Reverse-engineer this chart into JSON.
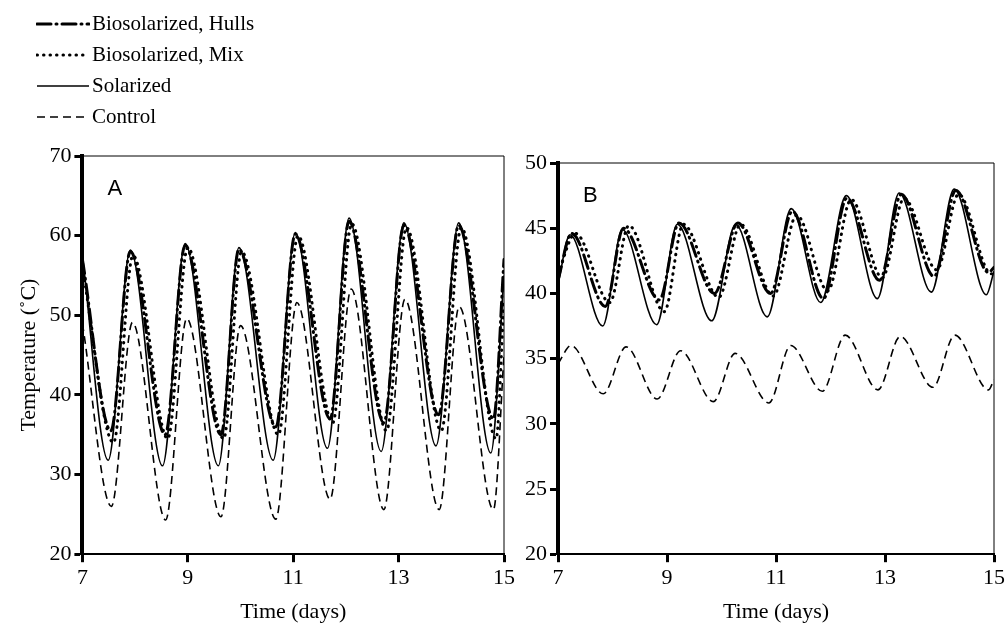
{
  "chart_data": [
    {
      "type": "line",
      "ylabel": "Temperature (˚C)",
      "xlabel": "Time (days)",
      "annotations": [
        "A"
      ],
      "xlim": [
        7,
        15
      ],
      "xticks": [
        7,
        9,
        11,
        13,
        15
      ],
      "ylim": [
        20,
        70
      ],
      "yticks": [
        20,
        30,
        40,
        50,
        60,
        70
      ],
      "grid": false,
      "legend": "top left",
      "marker": "none",
      "series": [
        {
          "name": "Biosolarized, Hulls",
          "color": "#000000",
          "line_style": "dashdot",
          "x": [
            7,
            7.54,
            7.91,
            8.57,
            8.95,
            9.63,
            9.97,
            10.67,
            11.04,
            11.7,
            12.06,
            12.72,
            13.1,
            13.76,
            14.14,
            14.8,
            15
          ],
          "values": [
            57,
            35.5,
            58,
            35,
            58.8,
            35,
            58.3,
            36,
            60.2,
            37,
            61.8,
            36.5,
            61.3,
            37.5,
            61.3,
            37,
            57
          ]
        },
        {
          "name": "Biosolarized, Mix",
          "color": "#000000",
          "line_style": "dotted",
          "x": [
            7,
            7.59,
            7.96,
            8.62,
            9.0,
            9.68,
            10.02,
            10.72,
            11.09,
            11.75,
            12.11,
            12.77,
            13.15,
            13.81,
            14.19,
            14.85,
            15
          ],
          "values": [
            56,
            34,
            57.5,
            34.5,
            58.5,
            34.5,
            58,
            35,
            60,
            36.5,
            61.5,
            35.5,
            61,
            35.5,
            61,
            34.5,
            52
          ]
        },
        {
          "name": "Solarized",
          "color": "#000000",
          "line_style": "solid",
          "x": [
            7,
            7.49,
            7.91,
            8.52,
            8.95,
            9.58,
            9.97,
            10.62,
            11.04,
            11.65,
            12.06,
            12.67,
            13.1,
            13.71,
            14.14,
            14.75,
            15
          ],
          "values": [
            57.5,
            31.8,
            58.2,
            31.1,
            59.0,
            31.1,
            58.5,
            31.8,
            60.4,
            33.3,
            62.2,
            32.9,
            61.6,
            33.6,
            61.6,
            32.7,
            55
          ]
        },
        {
          "name": "Control",
          "color": "#000000",
          "line_style": "dashed",
          "x": [
            7,
            7.55,
            7.95,
            8.58,
            8.98,
            9.63,
            10.0,
            10.67,
            11.07,
            11.7,
            12.1,
            12.72,
            13.12,
            13.77,
            14.15,
            14.8,
            15
          ],
          "values": [
            49,
            26,
            49.1,
            24.3,
            49.6,
            24.7,
            48.7,
            24.4,
            51.6,
            26.9,
            53.3,
            25.6,
            52,
            25.6,
            51.1,
            25.6,
            45
          ]
        }
      ]
    },
    {
      "type": "line",
      "xlabel": "Time (days)",
      "annotations": [
        "B"
      ],
      "xlim": [
        7,
        15
      ],
      "xticks": [
        7,
        9,
        11,
        13,
        15
      ],
      "ylim": [
        20,
        50
      ],
      "yticks": [
        20,
        25,
        30,
        35,
        40,
        45,
        50
      ],
      "grid": false,
      "marker": "none",
      "series": [
        {
          "color": "#000000",
          "line_style": "dashdot",
          "x": [
            7,
            7.25,
            7.87,
            8.2,
            8.86,
            9.22,
            9.87,
            10.3,
            10.9,
            11.3,
            11.87,
            12.3,
            12.9,
            13.3,
            13.9,
            14.3,
            14.9,
            15
          ],
          "values": [
            41,
            44.6,
            39,
            45,
            39.5,
            45.4,
            40,
            45.4,
            40,
            46.3,
            39.6,
            47.3,
            41,
            47.6,
            41.3,
            47.9,
            41.6,
            42
          ]
        },
        {
          "color": "#000000",
          "line_style": "dotted",
          "x": [
            7,
            7.32,
            7.95,
            8.3,
            8.95,
            9.3,
            9.95,
            10.35,
            10.95,
            11.38,
            11.95,
            12.38,
            12.95,
            13.35,
            13.95,
            14.35,
            14.95,
            15
          ],
          "values": [
            41.5,
            44.6,
            39.3,
            45.2,
            38.6,
            45.3,
            39.7,
            45.3,
            39.8,
            46,
            40.2,
            47.2,
            41.2,
            47.3,
            41.8,
            47.6,
            41.5,
            41.8
          ]
        },
        {
          "color": "#000000",
          "line_style": "solid",
          "x": [
            7,
            7.22,
            7.82,
            8.18,
            8.81,
            9.19,
            9.82,
            10.26,
            10.84,
            11.28,
            11.82,
            12.29,
            12.86,
            13.26,
            13.85,
            14.27,
            14.86,
            15
          ],
          "values": [
            40.7,
            44.5,
            37.5,
            44.9,
            37.6,
            45.3,
            37.9,
            45.3,
            38.2,
            46.5,
            39.3,
            47.5,
            39.6,
            47.7,
            40.1,
            48.0,
            39.9,
            41.7
          ]
        },
        {
          "color": "#000000",
          "line_style": "dashed",
          "x": [
            7,
            7.24,
            7.83,
            8.25,
            8.82,
            9.25,
            9.85,
            10.25,
            10.87,
            11.27,
            11.85,
            12.27,
            12.87,
            13.28,
            13.88,
            14.28,
            14.9,
            15
          ],
          "values": [
            34.6,
            36.0,
            32.3,
            35.9,
            31.9,
            35.6,
            31.7,
            35.4,
            31.6,
            36.0,
            32.5,
            36.8,
            32.6,
            36.7,
            32.8,
            36.8,
            32.6,
            33.4
          ]
        }
      ]
    }
  ]
}
